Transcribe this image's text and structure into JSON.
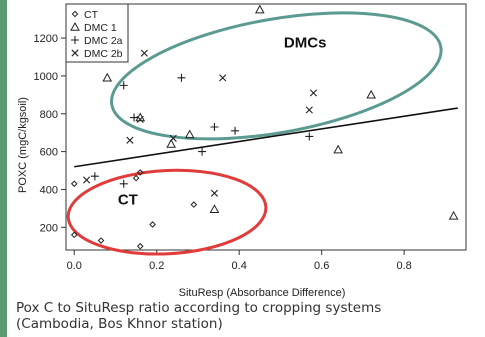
{
  "chart_data": {
    "type": "scatter",
    "xlabel": "SituResp (Absorbance Difference)",
    "ylabel": "POXC (mgC/kgsoil)",
    "xlim": [
      -0.02,
      0.95
    ],
    "ylim": [
      80,
      1380
    ],
    "xticks": [
      "0.0",
      "0.2",
      "0.4",
      "0.6",
      "0.8"
    ],
    "yticks": [
      "200",
      "400",
      "600",
      "800",
      "1000",
      "1200"
    ],
    "legend_position": "top-left",
    "series": [
      {
        "name": "CT",
        "marker": "diamond",
        "points": [
          [
            0.0,
            430
          ],
          [
            0.0,
            160
          ],
          [
            0.065,
            130
          ],
          [
            0.15,
            460
          ],
          [
            0.16,
            490
          ],
          [
            0.16,
            100
          ],
          [
            0.19,
            215
          ],
          [
            0.29,
            320
          ]
        ]
      },
      {
        "name": "DMC 1",
        "marker": "triangle",
        "points": [
          [
            0.08,
            990
          ],
          [
            0.16,
            780
          ],
          [
            0.235,
            640
          ],
          [
            0.28,
            690
          ],
          [
            0.34,
            295
          ],
          [
            0.45,
            1350
          ],
          [
            0.64,
            610
          ],
          [
            0.72,
            900
          ],
          [
            0.92,
            260
          ]
        ]
      },
      {
        "name": "DMC 2a",
        "marker": "plus",
        "points": [
          [
            0.05,
            470
          ],
          [
            0.12,
            430
          ],
          [
            0.12,
            950
          ],
          [
            0.145,
            780
          ],
          [
            0.26,
            990
          ],
          [
            0.31,
            600
          ],
          [
            0.34,
            730
          ],
          [
            0.39,
            710
          ],
          [
            0.57,
            680
          ]
        ]
      },
      {
        "name": "DMC 2b",
        "marker": "x",
        "points": [
          [
            0.03,
            450
          ],
          [
            0.135,
            660
          ],
          [
            0.16,
            770
          ],
          [
            0.17,
            1120
          ],
          [
            0.24,
            670
          ],
          [
            0.34,
            380
          ],
          [
            0.36,
            990
          ],
          [
            0.57,
            820
          ],
          [
            0.58,
            910
          ]
        ]
      }
    ],
    "trend_line": {
      "x": [
        0.0,
        0.93
      ],
      "y": [
        520,
        830
      ]
    },
    "annotations": [
      {
        "label": "DMCs",
        "color": "#5b9a90"
      },
      {
        "label": "CT",
        "color": "#e03c3c"
      }
    ]
  },
  "caption": {
    "line1": "Pox C to SituResp ratio according to cropping systems",
    "line2": "(Cambodia, Bos Khnor station)"
  }
}
